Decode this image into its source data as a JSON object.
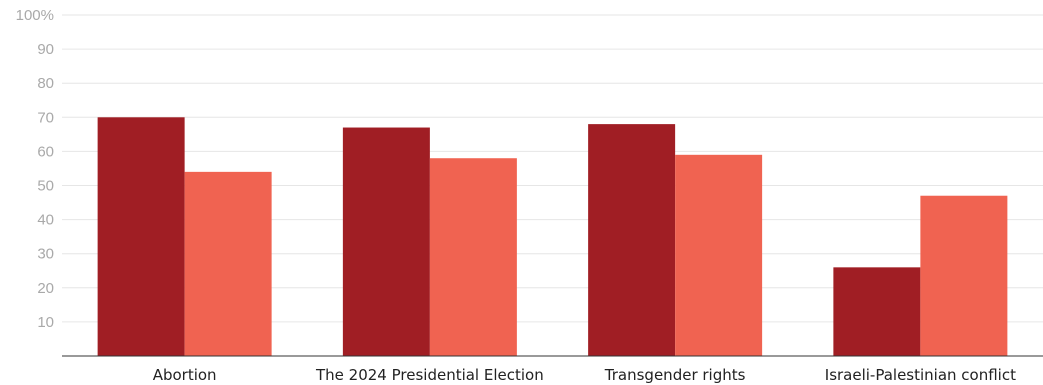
{
  "chart_data": {
    "type": "bar",
    "title": "",
    "xlabel": "",
    "ylabel": "",
    "ylim": [
      0,
      100
    ],
    "yticks": [
      10,
      20,
      30,
      40,
      50,
      60,
      70,
      80,
      90,
      100
    ],
    "ytick_labels": [
      "10",
      "20",
      "30",
      "40",
      "50",
      "60",
      "70",
      "80",
      "90",
      "100%"
    ],
    "grid": true,
    "legend": "none",
    "categories": [
      "Abortion",
      "The 2024 Presidential Election",
      "Transgender rights",
      "Israeli-Palestinian conflict"
    ],
    "series": [
      {
        "values": [
          70,
          67,
          68,
          26
        ],
        "color": "#a01e24"
      },
      {
        "values": [
          54,
          58,
          59,
          47
        ],
        "color": "#f06351"
      }
    ]
  }
}
